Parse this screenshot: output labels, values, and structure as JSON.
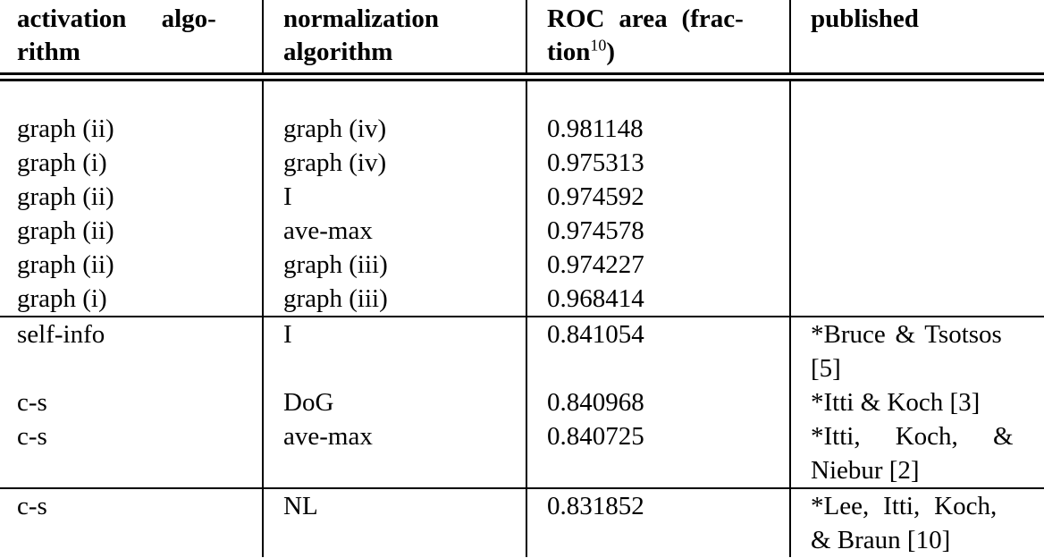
{
  "table": {
    "headers": [
      {
        "line1": "activation algo-",
        "line2": "rithm"
      },
      {
        "line1": "normalization",
        "line2": "algorithm"
      },
      {
        "line1": "ROC area (frac-",
        "line2_base": "tion",
        "line2_sup": "10",
        "line2_close": ")"
      },
      {
        "line1": "published"
      }
    ],
    "column_keys": [
      "activation algorithm",
      "normalization algorithm",
      "ROC area (fraction)",
      "published"
    ],
    "rows": [
      {
        "activation": "graph (ii)",
        "normalization": "graph (iv)",
        "roc": "0.981148",
        "published": ""
      },
      {
        "activation": "graph (i)",
        "normalization": "graph (iv)",
        "roc": "0.975313",
        "published": ""
      },
      {
        "activation": "graph (ii)",
        "normalization": "I",
        "roc": "0.974592",
        "published": ""
      },
      {
        "activation": "graph (ii)",
        "normalization": "ave-max",
        "roc": "0.974578",
        "published": ""
      },
      {
        "activation": "graph (ii)",
        "normalization": "graph (iii)",
        "roc": "0.974227",
        "published": ""
      },
      {
        "activation": "graph (i)",
        "normalization": "graph (iii)",
        "roc": "0.968414",
        "published": ""
      },
      {
        "activation": "self-info",
        "normalization": "I",
        "roc": "0.841054",
        "published_line1": "*Bruce & Tsotsos",
        "published_line2": "[5]"
      },
      {
        "activation": "c-s",
        "normalization": "DoG",
        "roc": "0.840968",
        "published": "*Itti & Koch [3]"
      },
      {
        "activation": "c-s",
        "normalization": "ave-max",
        "roc": "0.840725",
        "published_line1": "*Itti, Koch, &",
        "published_line2": "Niebur [2]"
      },
      {
        "activation": "c-s",
        "normalization": "NL",
        "roc": "0.831852",
        "published_line1": "*Lee, Itti, Koch,",
        "published_line2": "& Braun [10]"
      }
    ]
  }
}
